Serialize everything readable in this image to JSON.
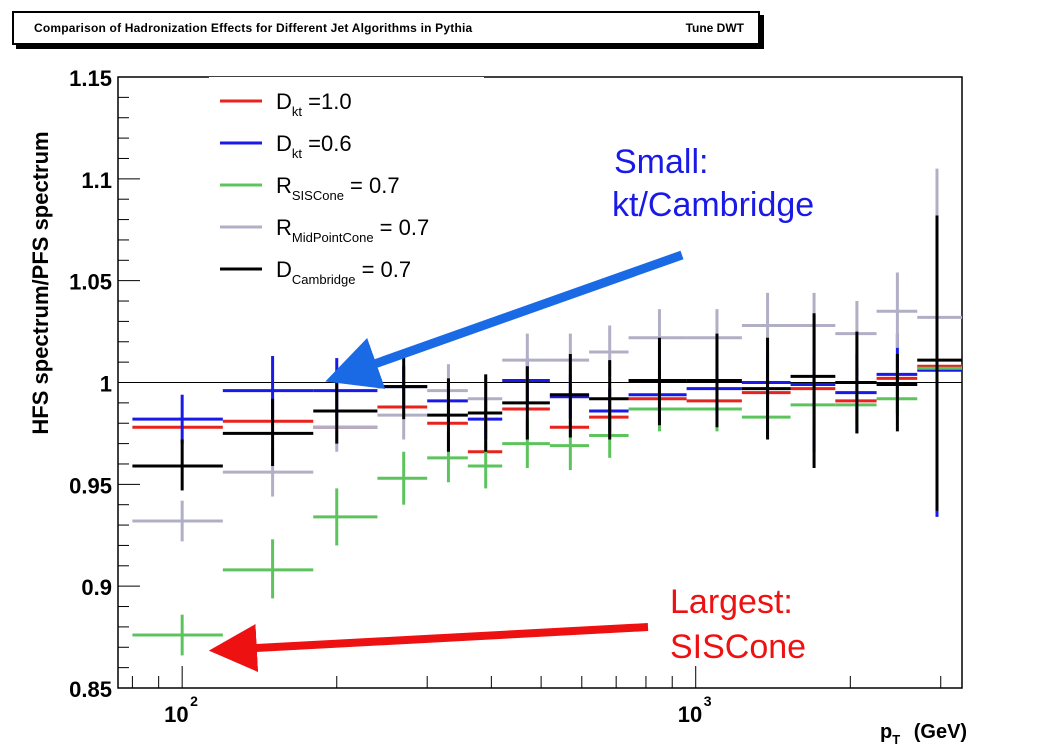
{
  "title": {
    "main": "Comparison of Hadronization Effects for Different Jet Algorithms in Pythia",
    "tune": "Tune DWT"
  },
  "chart_data": {
    "type": "scatter",
    "xlabel": "p_T (GeV)",
    "ylabel": "HFS spectrum/PFS spectrum",
    "xscale": "log",
    "xlim": [
      75,
      3300
    ],
    "ylim": [
      0.85,
      1.15
    ],
    "x_tick_labels": [
      {
        "value": 100,
        "base": "10",
        "exp": "2"
      },
      {
        "value": 1000,
        "base": "10",
        "exp": "3"
      }
    ],
    "y_ticks": [
      {
        "value": 0.85,
        "label": "0.85"
      },
      {
        "value": 0.9,
        "label": "0.9"
      },
      {
        "value": 0.95,
        "label": "0.95"
      },
      {
        "value": 1.0,
        "label": "1"
      },
      {
        "value": 1.05,
        "label": "1.05"
      },
      {
        "value": 1.1,
        "label": "1.1"
      },
      {
        "value": 1.15,
        "label": "1.15"
      }
    ],
    "reference_line": 1.0,
    "legend_position": "top-left",
    "series": [
      {
        "label_main": "D",
        "label_sub": "kt",
        "label_tail": "=1.0",
        "color": "#e8221c",
        "points": [
          {
            "x": 100,
            "xlo": 80,
            "xhi": 120,
            "y": 0.978,
            "ylo": 0.978,
            "yhi": 0.978
          },
          {
            "x": 150,
            "xlo": 120,
            "xhi": 180,
            "y": 0.981,
            "ylo": 0.981,
            "yhi": 0.981
          },
          {
            "x": 200,
            "xlo": 180,
            "xhi": 240,
            "y": 0.978,
            "ylo": 0.978,
            "yhi": 0.978
          },
          {
            "x": 270,
            "xlo": 240,
            "xhi": 300,
            "y": 0.988,
            "ylo": 0.988,
            "yhi": 0.988
          },
          {
            "x": 330,
            "xlo": 300,
            "xhi": 360,
            "y": 0.98,
            "ylo": 0.98,
            "yhi": 0.98
          },
          {
            "x": 390,
            "xlo": 360,
            "xhi": 420,
            "y": 0.966,
            "ylo": 0.966,
            "yhi": 0.966
          },
          {
            "x": 470,
            "xlo": 420,
            "xhi": 520,
            "y": 0.987,
            "ylo": 0.987,
            "yhi": 0.987
          },
          {
            "x": 570,
            "xlo": 520,
            "xhi": 620,
            "y": 0.978,
            "ylo": 0.978,
            "yhi": 0.978
          },
          {
            "x": 680,
            "xlo": 620,
            "xhi": 740,
            "y": 0.983,
            "ylo": 0.983,
            "yhi": 0.983
          },
          {
            "x": 850,
            "xlo": 740,
            "xhi": 960,
            "y": 0.992,
            "ylo": 0.992,
            "yhi": 0.992
          },
          {
            "x": 1100,
            "xlo": 960,
            "xhi": 1230,
            "y": 0.991,
            "ylo": 0.991,
            "yhi": 0.991
          },
          {
            "x": 1380,
            "xlo": 1230,
            "xhi": 1530,
            "y": 0.995,
            "ylo": 0.995,
            "yhi": 0.995
          },
          {
            "x": 1700,
            "xlo": 1530,
            "xhi": 1870,
            "y": 0.997,
            "ylo": 0.997,
            "yhi": 0.997
          },
          {
            "x": 2060,
            "xlo": 1870,
            "xhi": 2250,
            "y": 0.991,
            "ylo": 0.991,
            "yhi": 0.991
          },
          {
            "x": 2470,
            "xlo": 2250,
            "xhi": 2700,
            "y": 1.002,
            "ylo": 1.002,
            "yhi": 1.002
          },
          {
            "x": 2950,
            "xlo": 2700,
            "xhi": 3300,
            "y": 1.008,
            "ylo": 1.008,
            "yhi": 1.008
          }
        ]
      },
      {
        "label_main": "D",
        "label_sub": "kt",
        "label_tail": "=0.6",
        "color": "#1a1ae6",
        "points": [
          {
            "x": 100,
            "xlo": 80,
            "xhi": 120,
            "y": 0.982,
            "ylo": 0.97,
            "yhi": 0.994
          },
          {
            "x": 150,
            "xlo": 120,
            "xhi": 180,
            "y": 0.996,
            "ylo": 0.982,
            "yhi": 1.013
          },
          {
            "x": 200,
            "xlo": 180,
            "xhi": 240,
            "y": 0.996,
            "ylo": 0.982,
            "yhi": 1.012
          },
          {
            "x": 270,
            "xlo": 240,
            "xhi": 300,
            "y": 0.998,
            "ylo": 0.988,
            "yhi": 1.008
          },
          {
            "x": 330,
            "xlo": 300,
            "xhi": 360,
            "y": 0.991,
            "ylo": 0.981,
            "yhi": 1.0
          },
          {
            "x": 390,
            "xlo": 360,
            "xhi": 420,
            "y": 0.982,
            "ylo": 0.972,
            "yhi": 0.992
          },
          {
            "x": 470,
            "xlo": 420,
            "xhi": 520,
            "y": 1.001,
            "ylo": 0.99,
            "yhi": 1.012
          },
          {
            "x": 570,
            "xlo": 520,
            "xhi": 620,
            "y": 0.993,
            "ylo": 0.982,
            "yhi": 1.004
          },
          {
            "x": 680,
            "xlo": 620,
            "xhi": 740,
            "y": 0.986,
            "ylo": 0.975,
            "yhi": 0.997
          },
          {
            "x": 850,
            "xlo": 740,
            "xhi": 960,
            "y": 0.994,
            "ylo": 0.982,
            "yhi": 1.006
          },
          {
            "x": 1100,
            "xlo": 960,
            "xhi": 1230,
            "y": 0.997,
            "ylo": 0.984,
            "yhi": 1.01
          },
          {
            "x": 1380,
            "xlo": 1230,
            "xhi": 1530,
            "y": 1.0,
            "ylo": 0.985,
            "yhi": 1.014
          },
          {
            "x": 1700,
            "xlo": 1530,
            "xhi": 1870,
            "y": 0.999,
            "ylo": 0.966,
            "yhi": 1.033
          },
          {
            "x": 2060,
            "xlo": 1870,
            "xhi": 2250,
            "y": 0.995,
            "ylo": 0.975,
            "yhi": 1.014
          },
          {
            "x": 2470,
            "xlo": 2250,
            "xhi": 2700,
            "y": 1.004,
            "ylo": 0.985,
            "yhi": 1.024
          },
          {
            "x": 2950,
            "xlo": 2700,
            "xhi": 3300,
            "y": 1.006,
            "ylo": 0.934,
            "yhi": 1.078
          }
        ]
      },
      {
        "label_main": "R",
        "label_sub": "SISCone",
        "label_tail": "= 0.7",
        "color": "#5dc45d",
        "points": [
          {
            "x": 100,
            "xlo": 80,
            "xhi": 120,
            "y": 0.876,
            "ylo": 0.866,
            "yhi": 0.886
          },
          {
            "x": 150,
            "xlo": 120,
            "xhi": 180,
            "y": 0.908,
            "ylo": 0.894,
            "yhi": 0.923
          },
          {
            "x": 200,
            "xlo": 180,
            "xhi": 240,
            "y": 0.934,
            "ylo": 0.92,
            "yhi": 0.948
          },
          {
            "x": 270,
            "xlo": 240,
            "xhi": 300,
            "y": 0.953,
            "ylo": 0.94,
            "yhi": 0.966
          },
          {
            "x": 330,
            "xlo": 300,
            "xhi": 360,
            "y": 0.963,
            "ylo": 0.951,
            "yhi": 0.975
          },
          {
            "x": 390,
            "xlo": 360,
            "xhi": 420,
            "y": 0.959,
            "ylo": 0.948,
            "yhi": 0.971
          },
          {
            "x": 470,
            "xlo": 420,
            "xhi": 520,
            "y": 0.97,
            "ylo": 0.958,
            "yhi": 0.982
          },
          {
            "x": 570,
            "xlo": 520,
            "xhi": 620,
            "y": 0.969,
            "ylo": 0.957,
            "yhi": 0.981
          },
          {
            "x": 680,
            "xlo": 620,
            "xhi": 740,
            "y": 0.974,
            "ylo": 0.963,
            "yhi": 0.986
          },
          {
            "x": 850,
            "xlo": 740,
            "xhi": 960,
            "y": 0.987,
            "ylo": 0.976,
            "yhi": 0.998
          },
          {
            "x": 1100,
            "xlo": 960,
            "xhi": 1230,
            "y": 0.987,
            "ylo": 0.976,
            "yhi": 0.998
          },
          {
            "x": 1380,
            "xlo": 1230,
            "xhi": 1530,
            "y": 0.983,
            "ylo": 0.972,
            "yhi": 0.994
          },
          {
            "x": 1700,
            "xlo": 1530,
            "xhi": 1870,
            "y": 0.989,
            "ylo": 0.978,
            "yhi": 1.0
          },
          {
            "x": 2060,
            "xlo": 1870,
            "xhi": 2250,
            "y": 0.989,
            "ylo": 0.979,
            "yhi": 0.999
          },
          {
            "x": 2470,
            "xlo": 2250,
            "xhi": 2700,
            "y": 0.992,
            "ylo": 0.983,
            "yhi": 1.001
          },
          {
            "x": 2950,
            "xlo": 2700,
            "xhi": 3300,
            "y": 1.007,
            "ylo": 0.998,
            "yhi": 1.016
          }
        ]
      },
      {
        "label_main": "R",
        "label_sub": "MidPointCone",
        "label_tail": "= 0.7",
        "color": "#b0afc6",
        "points": [
          {
            "x": 100,
            "xlo": 80,
            "xhi": 120,
            "y": 0.932,
            "ylo": 0.922,
            "yhi": 0.942
          },
          {
            "x": 150,
            "xlo": 120,
            "xhi": 180,
            "y": 0.956,
            "ylo": 0.944,
            "yhi": 0.968
          },
          {
            "x": 200,
            "xlo": 180,
            "xhi": 240,
            "y": 0.978,
            "ylo": 0.966,
            "yhi": 0.99
          },
          {
            "x": 270,
            "xlo": 240,
            "xhi": 300,
            "y": 0.984,
            "ylo": 0.972,
            "yhi": 0.996
          },
          {
            "x": 330,
            "xlo": 300,
            "xhi": 360,
            "y": 0.996,
            "ylo": 0.984,
            "yhi": 1.009
          },
          {
            "x": 390,
            "xlo": 360,
            "xhi": 420,
            "y": 0.992,
            "ylo": 0.98,
            "yhi": 1.004
          },
          {
            "x": 470,
            "xlo": 420,
            "xhi": 520,
            "y": 1.011,
            "ylo": 0.999,
            "yhi": 1.024
          },
          {
            "x": 570,
            "xlo": 520,
            "xhi": 620,
            "y": 1.011,
            "ylo": 0.999,
            "yhi": 1.024
          },
          {
            "x": 680,
            "xlo": 620,
            "xhi": 740,
            "y": 1.015,
            "ylo": 1.003,
            "yhi": 1.028
          },
          {
            "x": 850,
            "xlo": 740,
            "xhi": 960,
            "y": 1.022,
            "ylo": 1.01,
            "yhi": 1.036
          },
          {
            "x": 1100,
            "xlo": 960,
            "xhi": 1230,
            "y": 1.022,
            "ylo": 1.008,
            "yhi": 1.036
          },
          {
            "x": 1380,
            "xlo": 1230,
            "xhi": 1530,
            "y": 1.028,
            "ylo": 1.013,
            "yhi": 1.044
          },
          {
            "x": 1700,
            "xlo": 1530,
            "xhi": 1870,
            "y": 1.028,
            "ylo": 1.013,
            "yhi": 1.044
          },
          {
            "x": 2060,
            "xlo": 1870,
            "xhi": 2250,
            "y": 1.024,
            "ylo": 1.008,
            "yhi": 1.04
          },
          {
            "x": 2470,
            "xlo": 2250,
            "xhi": 2700,
            "y": 1.035,
            "ylo": 1.017,
            "yhi": 1.054
          },
          {
            "x": 2950,
            "xlo": 2700,
            "xhi": 3300,
            "y": 1.032,
            "ylo": 0.99,
            "yhi": 1.105
          }
        ]
      },
      {
        "label_main": "D",
        "label_sub": "Cambridge",
        "label_tail": "= 0.7",
        "color": "#000000",
        "points": [
          {
            "x": 100,
            "xlo": 80,
            "xhi": 120,
            "y": 0.959,
            "ylo": 0.947,
            "yhi": 0.972
          },
          {
            "x": 150,
            "xlo": 120,
            "xhi": 180,
            "y": 0.975,
            "ylo": 0.959,
            "yhi": 0.992
          },
          {
            "x": 200,
            "xlo": 180,
            "xhi": 240,
            "y": 0.986,
            "ylo": 0.97,
            "yhi": 1.002
          },
          {
            "x": 270,
            "xlo": 240,
            "xhi": 300,
            "y": 0.998,
            "ylo": 0.982,
            "yhi": 1.013
          },
          {
            "x": 330,
            "xlo": 300,
            "xhi": 360,
            "y": 0.984,
            "ylo": 0.966,
            "yhi": 1.002
          },
          {
            "x": 390,
            "xlo": 360,
            "xhi": 420,
            "y": 0.985,
            "ylo": 0.966,
            "yhi": 1.004
          },
          {
            "x": 470,
            "xlo": 420,
            "xhi": 520,
            "y": 0.99,
            "ylo": 0.972,
            "yhi": 1.008
          },
          {
            "x": 570,
            "xlo": 520,
            "xhi": 620,
            "y": 0.994,
            "ylo": 0.973,
            "yhi": 1.014
          },
          {
            "x": 680,
            "xlo": 620,
            "xhi": 740,
            "y": 0.992,
            "ylo": 0.972,
            "yhi": 1.011
          },
          {
            "x": 850,
            "xlo": 740,
            "xhi": 960,
            "y": 1.001,
            "ylo": 0.979,
            "yhi": 1.022
          },
          {
            "x": 1100,
            "xlo": 960,
            "xhi": 1230,
            "y": 1.001,
            "ylo": 0.978,
            "yhi": 1.024
          },
          {
            "x": 1380,
            "xlo": 1230,
            "xhi": 1530,
            "y": 0.997,
            "ylo": 0.972,
            "yhi": 1.022
          },
          {
            "x": 1700,
            "xlo": 1530,
            "xhi": 1870,
            "y": 1.003,
            "ylo": 0.958,
            "yhi": 1.034
          },
          {
            "x": 2060,
            "xlo": 1870,
            "xhi": 2250,
            "y": 1.0,
            "ylo": 0.975,
            "yhi": 1.025
          },
          {
            "x": 2470,
            "xlo": 2250,
            "xhi": 2700,
            "y": 0.999,
            "ylo": 0.976,
            "yhi": 1.014
          },
          {
            "x": 2950,
            "xlo": 2700,
            "xhi": 3300,
            "y": 1.011,
            "ylo": 0.937,
            "yhi": 1.082
          }
        ]
      }
    ],
    "annotations": [
      {
        "lines": [
          "Small:",
          "kt/Cambridge"
        ],
        "color": "#1a1ae6",
        "arrow_to": {
          "x": 200,
          "y": 1.002
        }
      },
      {
        "lines": [
          "Largest:",
          "SISCone"
        ],
        "color": "#ee1111",
        "arrow_to": {
          "x": 120,
          "y": 0.869
        }
      }
    ]
  }
}
